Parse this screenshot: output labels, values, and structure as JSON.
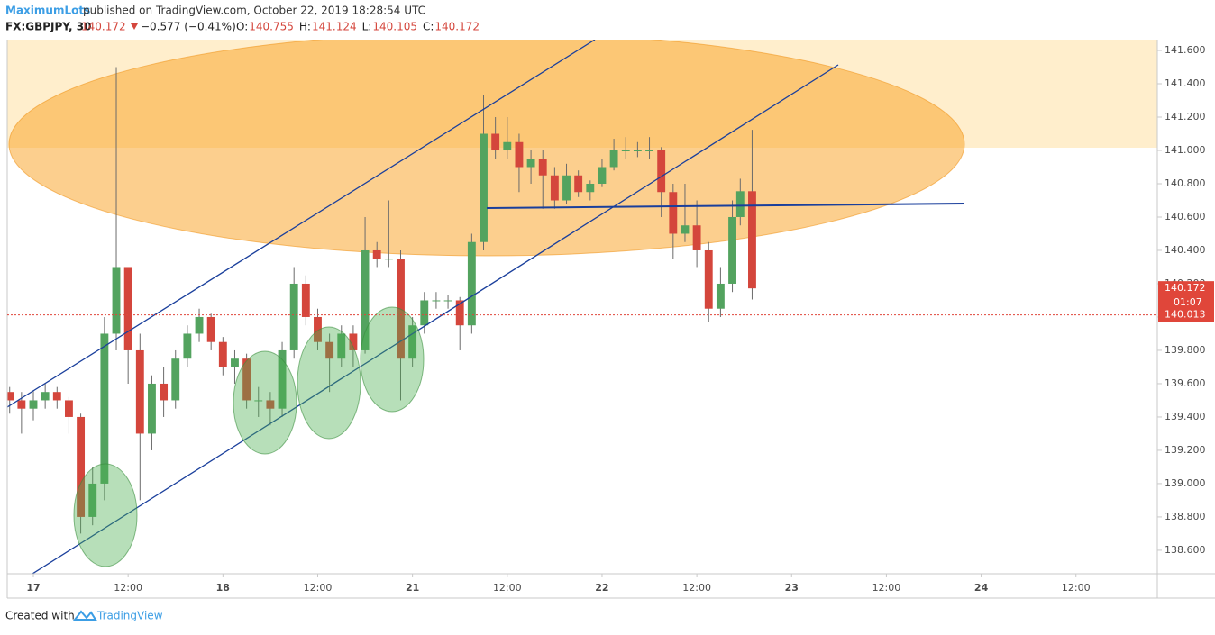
{
  "header": {
    "author": "MaximumLots",
    "published": "published on TradingView.com, October 22, 2019 18:28:54 UTC",
    "symbol": "FX:GBPJPY, 30",
    "change": "−0.577 (−0.41%)",
    "ohlc_prefixes": [
      "O:",
      "H:",
      "L:",
      "C:"
    ]
  },
  "chart_data": {
    "type": "candlestick",
    "x": [
      -6,
      -3,
      0,
      3,
      6,
      9,
      12,
      15,
      18,
      21,
      24,
      27,
      30,
      33,
      36,
      39,
      42,
      45,
      48,
      51,
      54,
      57,
      60,
      63,
      66,
      69,
      72,
      75,
      78,
      81,
      84,
      87,
      90,
      93,
      96,
      99,
      102,
      105,
      108,
      111,
      114,
      117,
      120,
      123,
      126,
      129,
      132,
      135,
      138,
      141,
      144,
      147,
      150,
      153,
      156,
      159,
      162,
      165,
      168,
      171,
      174,
      177,
      179,
      182
    ],
    "ohlc": [
      [
        139.55,
        139.58,
        139.42,
        139.5
      ],
      [
        139.5,
        139.55,
        139.3,
        139.45
      ],
      [
        139.45,
        139.56,
        139.38,
        139.5
      ],
      [
        139.5,
        139.6,
        139.45,
        139.55
      ],
      [
        139.55,
        139.58,
        139.45,
        139.5
      ],
      [
        139.5,
        139.52,
        139.3,
        139.4
      ],
      [
        139.4,
        139.42,
        138.7,
        138.8
      ],
      [
        138.8,
        139.1,
        138.75,
        139.0
      ],
      [
        139.0,
        140.0,
        138.9,
        139.9
      ],
      [
        139.9,
        141.5,
        139.8,
        140.3
      ],
      [
        140.3,
        140.3,
        139.6,
        139.8
      ],
      [
        139.8,
        139.9,
        138.9,
        139.3
      ],
      [
        139.3,
        139.65,
        139.2,
        139.6
      ],
      [
        139.6,
        139.7,
        139.4,
        139.5
      ],
      [
        139.5,
        139.8,
        139.45,
        139.75
      ],
      [
        139.75,
        139.95,
        139.7,
        139.9
      ],
      [
        139.9,
        140.05,
        139.85,
        140.0
      ],
      [
        140.0,
        140.02,
        139.8,
        139.85
      ],
      [
        139.85,
        139.88,
        139.65,
        139.7
      ],
      [
        139.7,
        139.8,
        139.6,
        139.75
      ],
      [
        139.75,
        139.78,
        139.45,
        139.5
      ],
      [
        139.5,
        139.58,
        139.4,
        139.5
      ],
      [
        139.5,
        139.55,
        139.35,
        139.45
      ],
      [
        139.45,
        139.85,
        139.4,
        139.8
      ],
      [
        139.8,
        140.3,
        139.75,
        140.2
      ],
      [
        140.2,
        140.25,
        139.95,
        140.0
      ],
      [
        140.0,
        140.05,
        139.8,
        139.85
      ],
      [
        139.85,
        139.9,
        139.55,
        139.75
      ],
      [
        139.75,
        139.95,
        139.7,
        139.9
      ],
      [
        139.9,
        139.95,
        139.7,
        139.8
      ],
      [
        139.8,
        140.6,
        139.78,
        140.4
      ],
      [
        140.4,
        140.45,
        140.3,
        140.35
      ],
      [
        140.35,
        140.7,
        140.3,
        140.35
      ],
      [
        140.35,
        140.4,
        139.5,
        139.75
      ],
      [
        139.75,
        140.0,
        139.7,
        139.95
      ],
      [
        139.95,
        140.15,
        139.9,
        140.1
      ],
      [
        140.1,
        140.15,
        140.05,
        140.1
      ],
      [
        140.1,
        140.13,
        140.05,
        140.1
      ],
      [
        140.1,
        140.12,
        139.8,
        139.95
      ],
      [
        139.95,
        140.5,
        139.9,
        140.45
      ],
      [
        140.45,
        141.33,
        140.4,
        141.1
      ],
      [
        141.1,
        141.2,
        140.95,
        141.0
      ],
      [
        141.0,
        141.2,
        140.95,
        141.05
      ],
      [
        141.05,
        141.1,
        140.75,
        140.9
      ],
      [
        140.9,
        141.0,
        140.8,
        140.95
      ],
      [
        140.95,
        141.0,
        140.65,
        140.85
      ],
      [
        140.85,
        140.9,
        140.65,
        140.7
      ],
      [
        140.7,
        140.92,
        140.68,
        140.85
      ],
      [
        140.85,
        140.88,
        140.72,
        140.75
      ],
      [
        140.75,
        140.82,
        140.7,
        140.8
      ],
      [
        140.8,
        140.95,
        140.78,
        140.9
      ],
      [
        140.9,
        141.07,
        140.88,
        141.0
      ],
      [
        141.0,
        141.08,
        140.95,
        141.0
      ],
      [
        141.0,
        141.05,
        140.96,
        141.0
      ],
      [
        141.0,
        141.08,
        140.95,
        141.0
      ],
      [
        141.0,
        141.02,
        140.6,
        140.75
      ],
      [
        140.75,
        140.8,
        140.35,
        140.5
      ],
      [
        140.5,
        140.8,
        140.45,
        140.55
      ],
      [
        140.55,
        140.7,
        140.3,
        140.4
      ],
      [
        140.4,
        140.45,
        139.97,
        140.05
      ],
      [
        140.05,
        140.3,
        140.0,
        140.2
      ],
      [
        140.2,
        140.7,
        140.15,
        140.6
      ],
      [
        140.6,
        140.83,
        140.55,
        140.755
      ],
      [
        140.755,
        141.124,
        140.105,
        140.172
      ]
    ],
    "up_color": "#53a35f",
    "down_color": "#d4463c",
    "xlim": [
      -6.62,
      284.6
    ],
    "xticks": [
      {
        "value": 0,
        "label": "17"
      },
      {
        "value": 24,
        "label": "12:00"
      },
      {
        "value": 48,
        "label": "18"
      },
      {
        "value": 72,
        "label": "12:00"
      },
      {
        "value": 96,
        "label": "21"
      },
      {
        "value": 120,
        "label": "12:00"
      },
      {
        "value": 144,
        "label": "22"
      },
      {
        "value": 168,
        "label": "12:00"
      },
      {
        "value": 192,
        "label": "23"
      },
      {
        "value": 216,
        "label": "12:00"
      },
      {
        "value": 240,
        "label": "24"
      },
      {
        "value": 264,
        "label": "12:00"
      }
    ],
    "ylim": [
      138.459,
      141.665
    ],
    "yticks": [
      {
        "value": 138.6,
        "label": "138.600"
      },
      {
        "value": 138.8,
        "label": "138.800"
      },
      {
        "value": 139.0,
        "label": "139.000"
      },
      {
        "value": 139.2,
        "label": "139.200"
      },
      {
        "value": 139.4,
        "label": "139.400"
      },
      {
        "value": 139.6,
        "label": "139.600"
      },
      {
        "value": 139.8,
        "label": "139.800"
      },
      {
        "value": 140.0,
        "label": "140.000"
      },
      {
        "value": 140.2,
        "label": "140.200"
      },
      {
        "value": 140.4,
        "label": "140.400"
      },
      {
        "value": 140.6,
        "label": "140.600"
      },
      {
        "value": 140.8,
        "label": "140.800"
      },
      {
        "value": 141.0,
        "label": "141.000"
      },
      {
        "value": 141.2,
        "label": "141.200"
      },
      {
        "value": 141.4,
        "label": "141.400"
      },
      {
        "value": 141.6,
        "label": "141.600"
      }
    ],
    "last_price": 140.172,
    "countdown": "01:07",
    "ref_price": 140.013,
    "tag_color": "#e0463a"
  },
  "footer": {
    "created": "Created with",
    "brand": "TradingView"
  }
}
